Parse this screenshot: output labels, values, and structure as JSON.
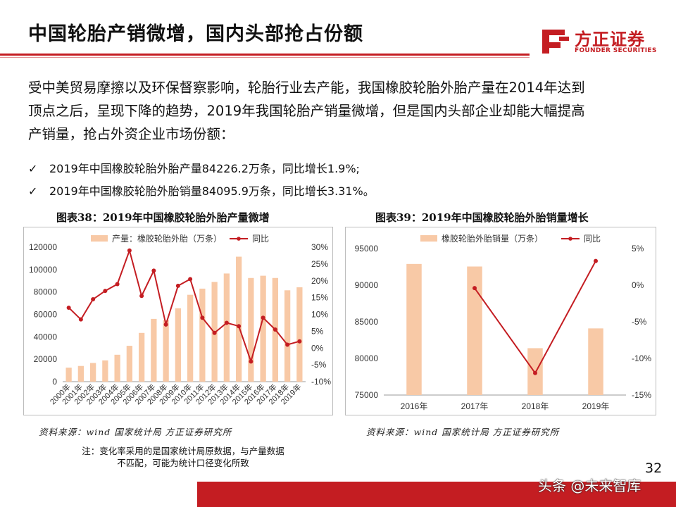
{
  "title": "中国轮胎产销微增，国内头部抢占份额",
  "logo": {
    "cn": "方正证券",
    "en": "FOUNDER SECURITIES"
  },
  "intro_lines": [
    "受中美贸易摩擦以及环保督察影响，轮胎行业去产能，我国橡胶轮胎外胎产量在2014年达到",
    "顶点之后，呈现下降的趋势，2019年我国轮胎产销量微增，但是国内头部企业却能大幅提高",
    "产销量，抢占外资企业市场份额："
  ],
  "bullets": [
    "2019年中国橡胶轮胎外胎产量84226.2万条，同比增长1.9%;",
    "2019年中国橡胶轮胎外胎销量84095.9万条，同比增长3.31%。"
  ],
  "bullet_mark": "✓",
  "chart38_title": "图表38：2019年中国橡胶轮胎外胎产量微增",
  "chart39_title": "图表39：2019年中国橡胶轮胎外胎销量增长",
  "source": "资料来源：wind 国家统计局 方正证券研究所",
  "note_lines": [
    "注：变化率采用的是国家统计局原数据，与产量数据",
    "不匹配，可能为统计口径变化所致"
  ],
  "page_number": "32",
  "watermark": "头条 @未来智库",
  "colors": {
    "bar": "#f8c9a6",
    "line": "#c41d22",
    "accent": "#c41d22"
  },
  "chart_data": [
    {
      "type": "bar",
      "categories": [
        "2000年",
        "2001年",
        "2002年",
        "2003年",
        "2004年",
        "2005年",
        "2006年",
        "2007年",
        "2008年",
        "2009年",
        "2010年",
        "2011年",
        "2012年",
        "2013年",
        "2014年",
        "2015年",
        "2016年",
        "2017年",
        "2018年",
        "2019年"
      ],
      "series": [
        {
          "name": "产量：橡胶轮胎外胎（万条）",
          "type": "bar",
          "axis": "left",
          "values": [
            12500,
            14000,
            16700,
            19000,
            24000,
            32000,
            43500,
            56000,
            55000,
            65500,
            77500,
            83000,
            89000,
            96500,
            111500,
            92500,
            94500,
            92500,
            81500,
            84200
          ]
        },
        {
          "name": "同比",
          "type": "line",
          "axis": "right",
          "values": [
            12,
            8.5,
            14.5,
            17,
            19,
            29,
            15.5,
            23,
            7,
            18.5,
            20.5,
            9,
            4.5,
            7.5,
            6.5,
            -4,
            9,
            5.5,
            1,
            2
          ]
        }
      ],
      "ylim": [
        0,
        120000
      ],
      "yticks": [
        "0",
        "20000",
        "40000",
        "60000",
        "80000",
        "100000",
        "120000"
      ],
      "y2lim": [
        -10,
        30
      ],
      "y2ticks": [
        "-10%",
        "-5%",
        "0%",
        "5%",
        "10%",
        "15%",
        "20%",
        "25%",
        "30%"
      ],
      "legend": "top"
    },
    {
      "type": "bar",
      "categories": [
        "2016年",
        "2017年",
        "2018年",
        "2019年"
      ],
      "series": [
        {
          "name": "橡胶轮胎外胎销量（万条）",
          "type": "bar",
          "axis": "left",
          "values": [
            92900,
            92550,
            81400,
            84100
          ]
        },
        {
          "name": "同比",
          "type": "line",
          "axis": "right",
          "values": [
            null,
            -0.4,
            -12,
            3.31
          ]
        }
      ],
      "ylim": [
        75000,
        95000
      ],
      "yticks": [
        "75000",
        "80000",
        "85000",
        "90000",
        "95000"
      ],
      "y2lim": [
        -15,
        5
      ],
      "y2ticks": [
        "-15%",
        "-10%",
        "-5%",
        "0%",
        "5%"
      ],
      "legend": "top"
    }
  ]
}
